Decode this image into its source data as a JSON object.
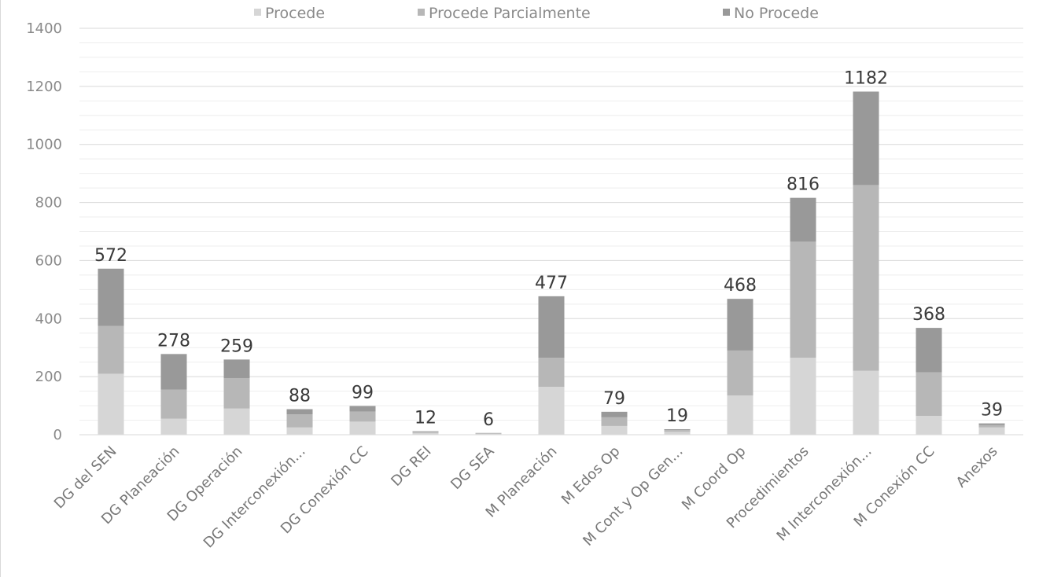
{
  "chart_data": {
    "type": "bar",
    "stacked": true,
    "title": "",
    "xlabel": "",
    "ylabel": "",
    "ylim": [
      0,
      1400
    ],
    "yticks": [
      0,
      200,
      400,
      600,
      800,
      1000,
      1200,
      1400
    ],
    "grid": true,
    "legend_position": "top",
    "categories": [
      "DG del SEN",
      "DG Planeación",
      "DG Operación",
      "DG Interconexión...",
      "DG Conexión CC",
      "DG REI",
      "DG SEA",
      "M Planeación",
      "M Edos Op",
      "M Cont y Op Gen...",
      "M Coord Op",
      "Procedimientos",
      "M Interconexión...",
      "M Conexión CC",
      "Anexos"
    ],
    "series": [
      {
        "name": "Procede",
        "color": "#d6d6d6",
        "values": [
          210,
          55,
          90,
          25,
          45,
          6,
          3,
          165,
          30,
          10,
          135,
          265,
          220,
          65,
          25
        ]
      },
      {
        "name": "Procede Parcialmente",
        "color": "#b7b7b7",
        "values": [
          165,
          100,
          105,
          45,
          35,
          4,
          2,
          100,
          30,
          6,
          155,
          400,
          640,
          150,
          8
        ]
      },
      {
        "name": "No Procede",
        "color": "#999999",
        "values": [
          197,
          123,
          64,
          18,
          19,
          2,
          1,
          212,
          19,
          3,
          178,
          151,
          322,
          153,
          6
        ]
      }
    ],
    "totals": [
      572,
      278,
      259,
      88,
      99,
      12,
      6,
      477,
      79,
      19,
      468,
      816,
      1182,
      368,
      39
    ]
  }
}
